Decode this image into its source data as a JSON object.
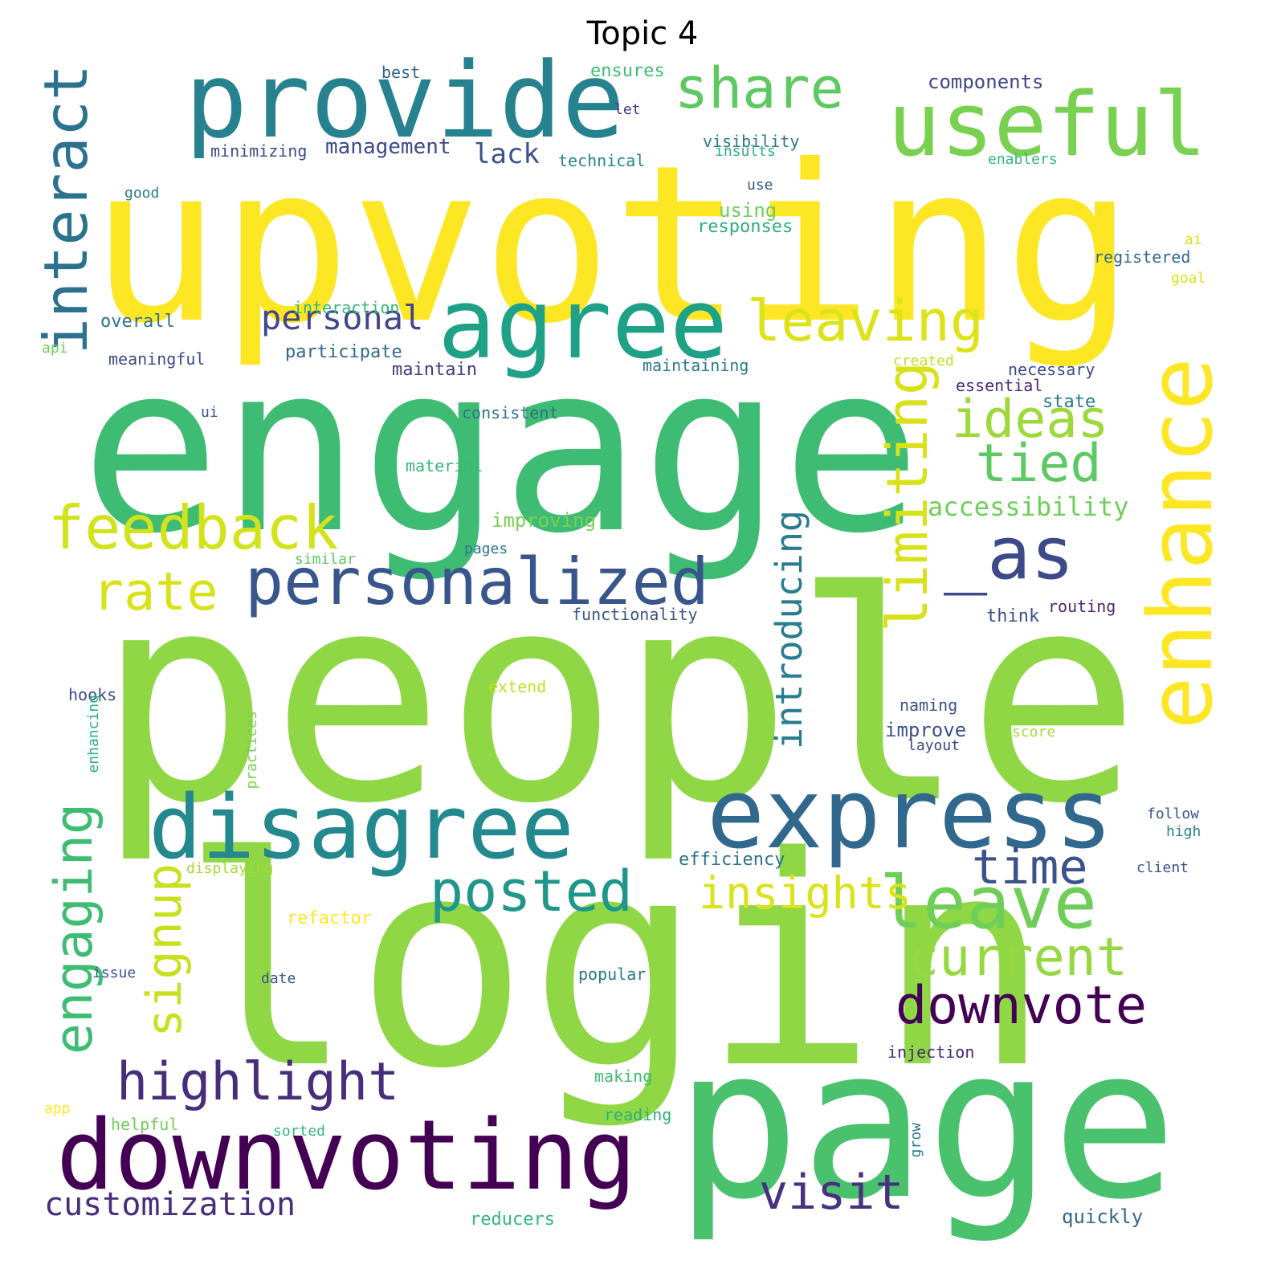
{
  "title": "Topic 4",
  "words": [
    {
      "text": "upvoting",
      "color": "#fde725"
    },
    {
      "text": "engage",
      "color": "#3fbc73"
    },
    {
      "text": "people",
      "color": "#8fd744"
    },
    {
      "text": "login",
      "color": "#8fd744"
    },
    {
      "text": "page",
      "color": "#4ac16d"
    },
    {
      "text": "provide",
      "color": "#26828e"
    },
    {
      "text": "agree",
      "color": "#1fa187"
    },
    {
      "text": "useful",
      "color": "#7ad151"
    },
    {
      "text": "share",
      "color": "#5ec962"
    },
    {
      "text": "enhance",
      "color": "#fde725"
    },
    {
      "text": "express",
      "color": "#31688e"
    },
    {
      "text": "disagree",
      "color": "#23898e"
    },
    {
      "text": "downvoting",
      "color": "#440154"
    },
    {
      "text": "leave",
      "color": "#6ece58"
    },
    {
      "text": "_as",
      "color": "#3e4989"
    },
    {
      "text": "personalized",
      "color": "#39568c"
    },
    {
      "text": "feedback",
      "color": "#d2e21b"
    },
    {
      "text": "interact",
      "color": "#2c728e"
    },
    {
      "text": "leaving",
      "color": "#dde318"
    },
    {
      "text": "limiting",
      "color": "#d8e219"
    },
    {
      "text": "ideas",
      "color": "#9dd93b"
    },
    {
      "text": "tied",
      "color": "#5ec962"
    },
    {
      "text": "rate",
      "color": "#d8e219"
    },
    {
      "text": "posted",
      "color": "#1f968b"
    },
    {
      "text": "highlight",
      "color": "#472d7b"
    },
    {
      "text": "downvote",
      "color": "#440154"
    },
    {
      "text": "current",
      "color": "#95d840"
    },
    {
      "text": "time",
      "color": "#3b528b"
    },
    {
      "text": "visit",
      "color": "#46327e"
    },
    {
      "text": "insights",
      "color": "#dae319"
    },
    {
      "text": "engaging",
      "color": "#3fbc73"
    },
    {
      "text": "signup",
      "color": "#c8e020"
    },
    {
      "text": "personal",
      "color": "#404688"
    },
    {
      "text": "customization",
      "color": "#472d7b"
    },
    {
      "text": "introducing",
      "color": "#287d8e"
    },
    {
      "text": "accessibility",
      "color": "#6ece58"
    },
    {
      "text": "lack",
      "color": "#3b528b"
    },
    {
      "text": "management",
      "color": "#3e4989"
    },
    {
      "text": "components",
      "color": "#414487"
    },
    {
      "text": "best",
      "color": "#33638d"
    },
    {
      "text": "ensures",
      "color": "#3fbc73"
    },
    {
      "text": "let",
      "color": "#46327e"
    },
    {
      "text": "minimizing",
      "color": "#3e4a89"
    },
    {
      "text": "visibility",
      "color": "#2a788e"
    },
    {
      "text": "insults",
      "color": "#2ab07f"
    },
    {
      "text": "technical",
      "color": "#25858e"
    },
    {
      "text": "enablers",
      "color": "#35b779"
    },
    {
      "text": "good",
      "color": "#2a788e"
    },
    {
      "text": "use",
      "color": "#3b528b"
    },
    {
      "text": "using",
      "color": "#6ece58"
    },
    {
      "text": "responses",
      "color": "#2ab07f"
    },
    {
      "text": "ai",
      "color": "#d8e219"
    },
    {
      "text": "registered",
      "color": "#31688e"
    },
    {
      "text": "goal",
      "color": "#d8e219"
    },
    {
      "text": "overall",
      "color": "#2c728e"
    },
    {
      "text": "interaction",
      "color": "#35b779"
    },
    {
      "text": "api",
      "color": "#6ece58"
    },
    {
      "text": "meaningful",
      "color": "#3e4989"
    },
    {
      "text": "participate",
      "color": "#31688e"
    },
    {
      "text": "maintain",
      "color": "#453882"
    },
    {
      "text": "maintaining",
      "color": "#2a788e"
    },
    {
      "text": "created",
      "color": "#c2df23"
    },
    {
      "text": "necessary",
      "color": "#3e4989"
    },
    {
      "text": "essential",
      "color": "#482878"
    },
    {
      "text": "state",
      "color": "#2a788e"
    },
    {
      "text": "ui",
      "color": "#3b528b"
    },
    {
      "text": "consistent",
      "color": "#2c728e"
    },
    {
      "text": "material",
      "color": "#35b779"
    },
    {
      "text": "improving",
      "color": "#7ad151"
    },
    {
      "text": "pages",
      "color": "#2a788e"
    },
    {
      "text": "similar",
      "color": "#5ec962"
    },
    {
      "text": "functionality",
      "color": "#3b528b"
    },
    {
      "text": "think",
      "color": "#3b528b"
    },
    {
      "text": "routing",
      "color": "#482878"
    },
    {
      "text": "extend",
      "color": "#c2df23"
    },
    {
      "text": "hooks",
      "color": "#3e4989"
    },
    {
      "text": "enhancing",
      "color": "#2ab07f"
    },
    {
      "text": "practices",
      "color": "#7ad151"
    },
    {
      "text": "naming",
      "color": "#3b528b"
    },
    {
      "text": "improve",
      "color": "#3b528b"
    },
    {
      "text": "score",
      "color": "#a5db36"
    },
    {
      "text": "layout",
      "color": "#414487"
    },
    {
      "text": "follow",
      "color": "#3b528b"
    },
    {
      "text": "high",
      "color": "#26828e"
    },
    {
      "text": "efficiency",
      "color": "#2c728e"
    },
    {
      "text": "displaying",
      "color": "#a5db36"
    },
    {
      "text": "client",
      "color": "#3b528b"
    },
    {
      "text": "refactor",
      "color": "#fde725"
    },
    {
      "text": "issue",
      "color": "#3b528b"
    },
    {
      "text": "date",
      "color": "#3b528b"
    },
    {
      "text": "popular",
      "color": "#2a788e"
    },
    {
      "text": "injection",
      "color": "#482878"
    },
    {
      "text": "making",
      "color": "#3fbc73"
    },
    {
      "text": "app",
      "color": "#fde725"
    },
    {
      "text": "helpful",
      "color": "#6ece58"
    },
    {
      "text": "reading",
      "color": "#2ab07f"
    },
    {
      "text": "sorted",
      "color": "#35b779"
    },
    {
      "text": "grow",
      "color": "#2a788e"
    },
    {
      "text": "reducers",
      "color": "#35b779"
    },
    {
      "text": "quickly",
      "color": "#31688e"
    }
  ]
}
